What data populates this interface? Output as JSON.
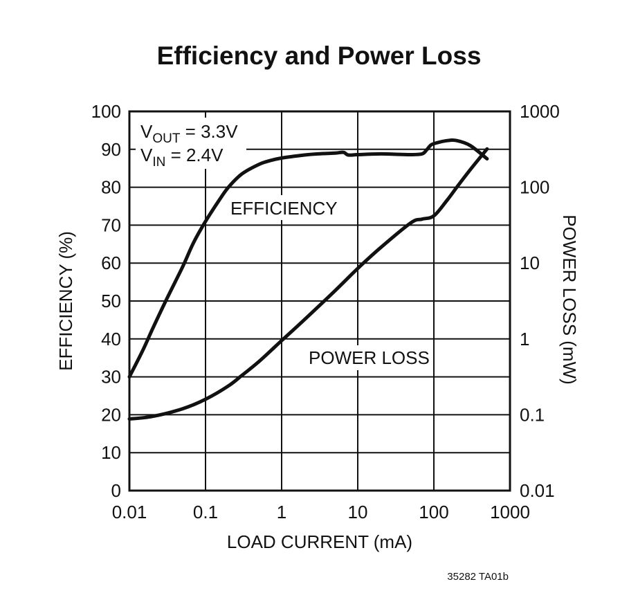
{
  "chart_data": {
    "type": "line",
    "title": "Efficiency and Power Loss",
    "xlabel": "LOAD CURRENT (mA)",
    "ylabel": "EFFICIENCY (%)",
    "y2label": "POWER LOSS (mW)",
    "xscale": "log",
    "xlim": [
      0.01,
      1000
    ],
    "ylim": [
      0,
      100
    ],
    "y2scale": "log",
    "y2lim": [
      0.01,
      1000
    ],
    "grid": true,
    "x_ticks": [
      "0.01",
      "0.1",
      "1",
      "10",
      "100",
      "1000"
    ],
    "y_ticks": [
      "0",
      "10",
      "20",
      "30",
      "40",
      "50",
      "60",
      "70",
      "80",
      "90",
      "100"
    ],
    "y2_ticks": [
      "0.01",
      "0.1",
      "1",
      "10",
      "100",
      "1000"
    ],
    "conditions": {
      "vout_main": "V",
      "vout_sub": "OUT",
      "vout_value": " = 3.3V",
      "vin_main": "V",
      "vin_sub": "IN",
      "vin_value": " = 2.4V"
    },
    "series": [
      {
        "name": "EFFICIENCY",
        "axis": "left",
        "x": [
          0.01,
          0.015,
          0.02,
          0.03,
          0.05,
          0.07,
          0.1,
          0.15,
          0.2,
          0.3,
          0.5,
          0.7,
          1,
          2,
          3,
          5,
          6.5,
          7.5,
          10,
          20,
          30,
          50,
          70,
          80,
          90,
          100,
          150,
          200,
          300,
          500
        ],
        "values": [
          30,
          37,
          42.5,
          50,
          59,
          65.5,
          71,
          76.5,
          80,
          83.5,
          86,
          87,
          87.7,
          88.5,
          88.8,
          89,
          89.2,
          88.5,
          88.6,
          88.8,
          88.7,
          88.6,
          88.8,
          89.8,
          91,
          91.5,
          92.3,
          92.3,
          91,
          87.5
        ]
      },
      {
        "name": "POWER LOSS",
        "axis": "right",
        "x": [
          0.01,
          0.02,
          0.05,
          0.1,
          0.2,
          0.3,
          0.5,
          1,
          2,
          5,
          10,
          20,
          50,
          70,
          100,
          150,
          200,
          300,
          500
        ],
        "values": [
          0.088,
          0.095,
          0.12,
          0.16,
          0.24,
          0.33,
          0.5,
          0.95,
          1.8,
          4.3,
          8.5,
          16,
          34,
          38,
          42,
          68,
          100,
          170,
          320
        ]
      }
    ],
    "annotations": [
      "EFFICIENCY",
      "POWER LOSS"
    ],
    "figure_id": "35282 TA01b"
  }
}
